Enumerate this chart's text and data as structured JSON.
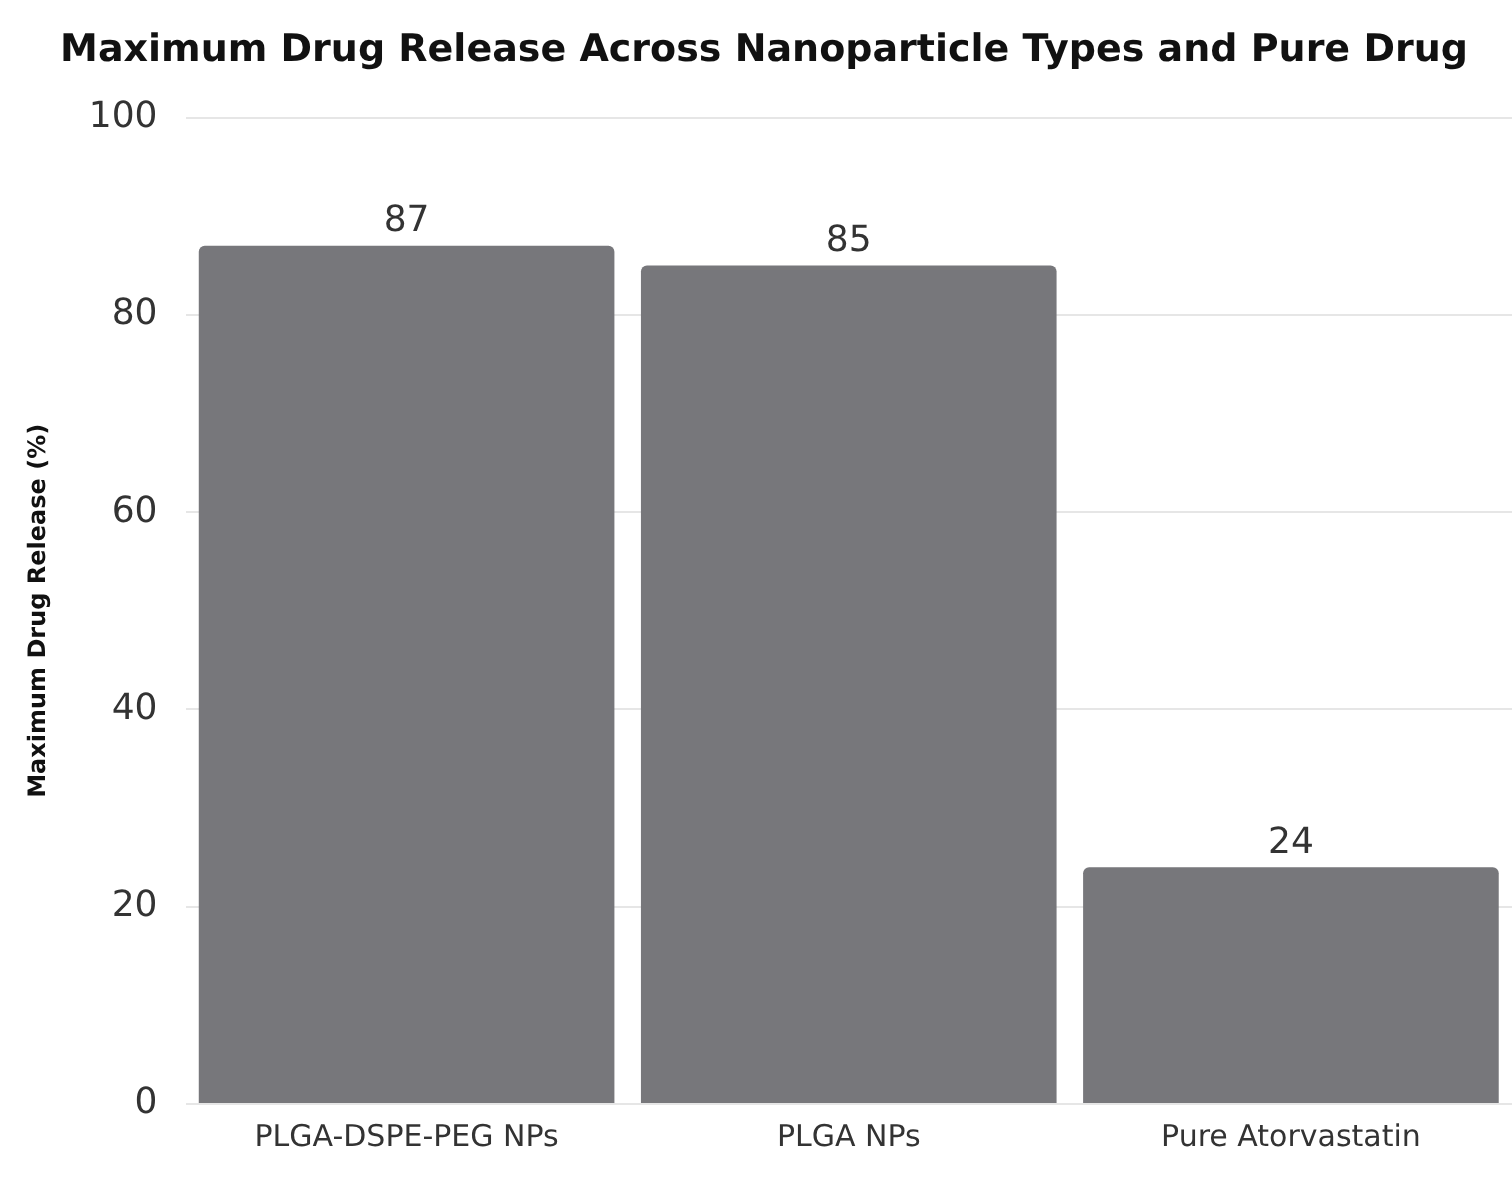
{
  "chart_data": {
    "type": "bar",
    "title": "Maximum Drug Release Across Nanoparticle Types and Pure Drug",
    "ylabel": "Maximum Drug Release (%)",
    "categories": [
      "PLGA-DSPE-PEG NPs",
      "PLGA NPs",
      "Pure Atorvastatin"
    ],
    "values": [
      87,
      85,
      24
    ],
    "color": "#77777b",
    "ylim": [
      0,
      100
    ],
    "yticks": [
      0,
      20,
      40,
      60,
      80,
      100
    ],
    "grid": "y",
    "data_labels": true,
    "legend": false
  }
}
